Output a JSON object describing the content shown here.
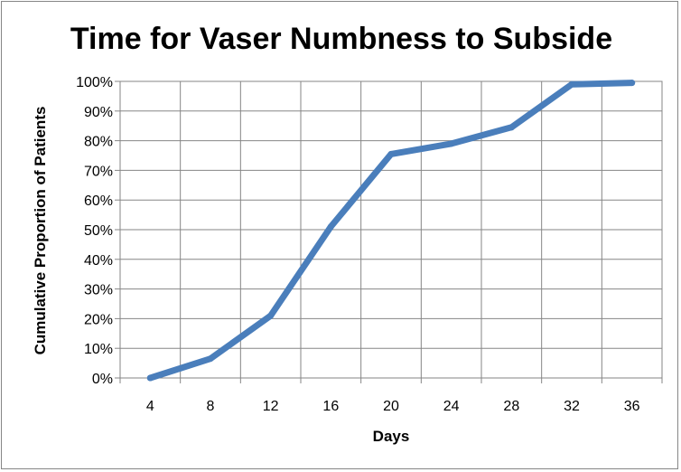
{
  "chart_data": {
    "type": "line",
    "title": "Time for Vaser Numbness to Subside",
    "xlabel": "Days",
    "ylabel": "Cumulative Proportion of Patients",
    "categories": [
      "4",
      "8",
      "12",
      "16",
      "20",
      "24",
      "28",
      "32",
      "36"
    ],
    "series": [
      {
        "values": [
          0,
          6.5,
          21,
          51,
          75.5,
          79,
          84.5,
          99,
          99.5
        ]
      }
    ],
    "ylim": [
      0,
      100
    ],
    "yticks": [
      "0%",
      "10%",
      "20%",
      "30%",
      "40%",
      "50%",
      "60%",
      "70%",
      "80%",
      "90%",
      "100%"
    ],
    "grid": true,
    "legend": "none",
    "colors": {
      "line": "#4a7ebb",
      "grid": "#868686",
      "border": "#868686"
    }
  }
}
